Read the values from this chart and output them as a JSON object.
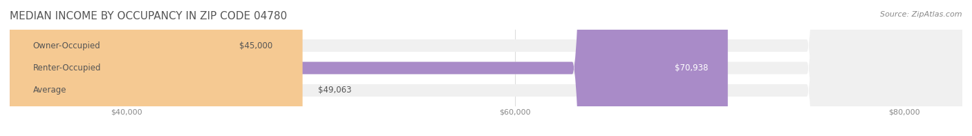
{
  "title": "MEDIAN INCOME BY OCCUPANCY IN ZIP CODE 04780",
  "source_text": "Source: ZipAtlas.com",
  "categories": [
    "Owner-Occupied",
    "Renter-Occupied",
    "Average"
  ],
  "values": [
    45000,
    70938,
    49063
  ],
  "bar_colors": [
    "#6ECFCF",
    "#A98BC8",
    "#F5C992"
  ],
  "bar_bg_color": "#F0F0F0",
  "value_labels": [
    "$45,000",
    "$70,938",
    "$49,063"
  ],
  "xlim": [
    34000,
    83000
  ],
  "xticks": [
    40000,
    60000,
    80000
  ],
  "xtick_labels": [
    "$40,000",
    "$60,000",
    "$80,000"
  ],
  "title_fontsize": 11,
  "source_fontsize": 8,
  "label_fontsize": 8.5,
  "value_fontsize": 8.5,
  "tick_fontsize": 8,
  "bar_height": 0.55,
  "bg_color": "#FFFFFF",
  "title_color": "#555555",
  "label_color": "#555555",
  "source_color": "#888888",
  "tick_color": "#888888",
  "grid_color": "#DDDDDD"
}
